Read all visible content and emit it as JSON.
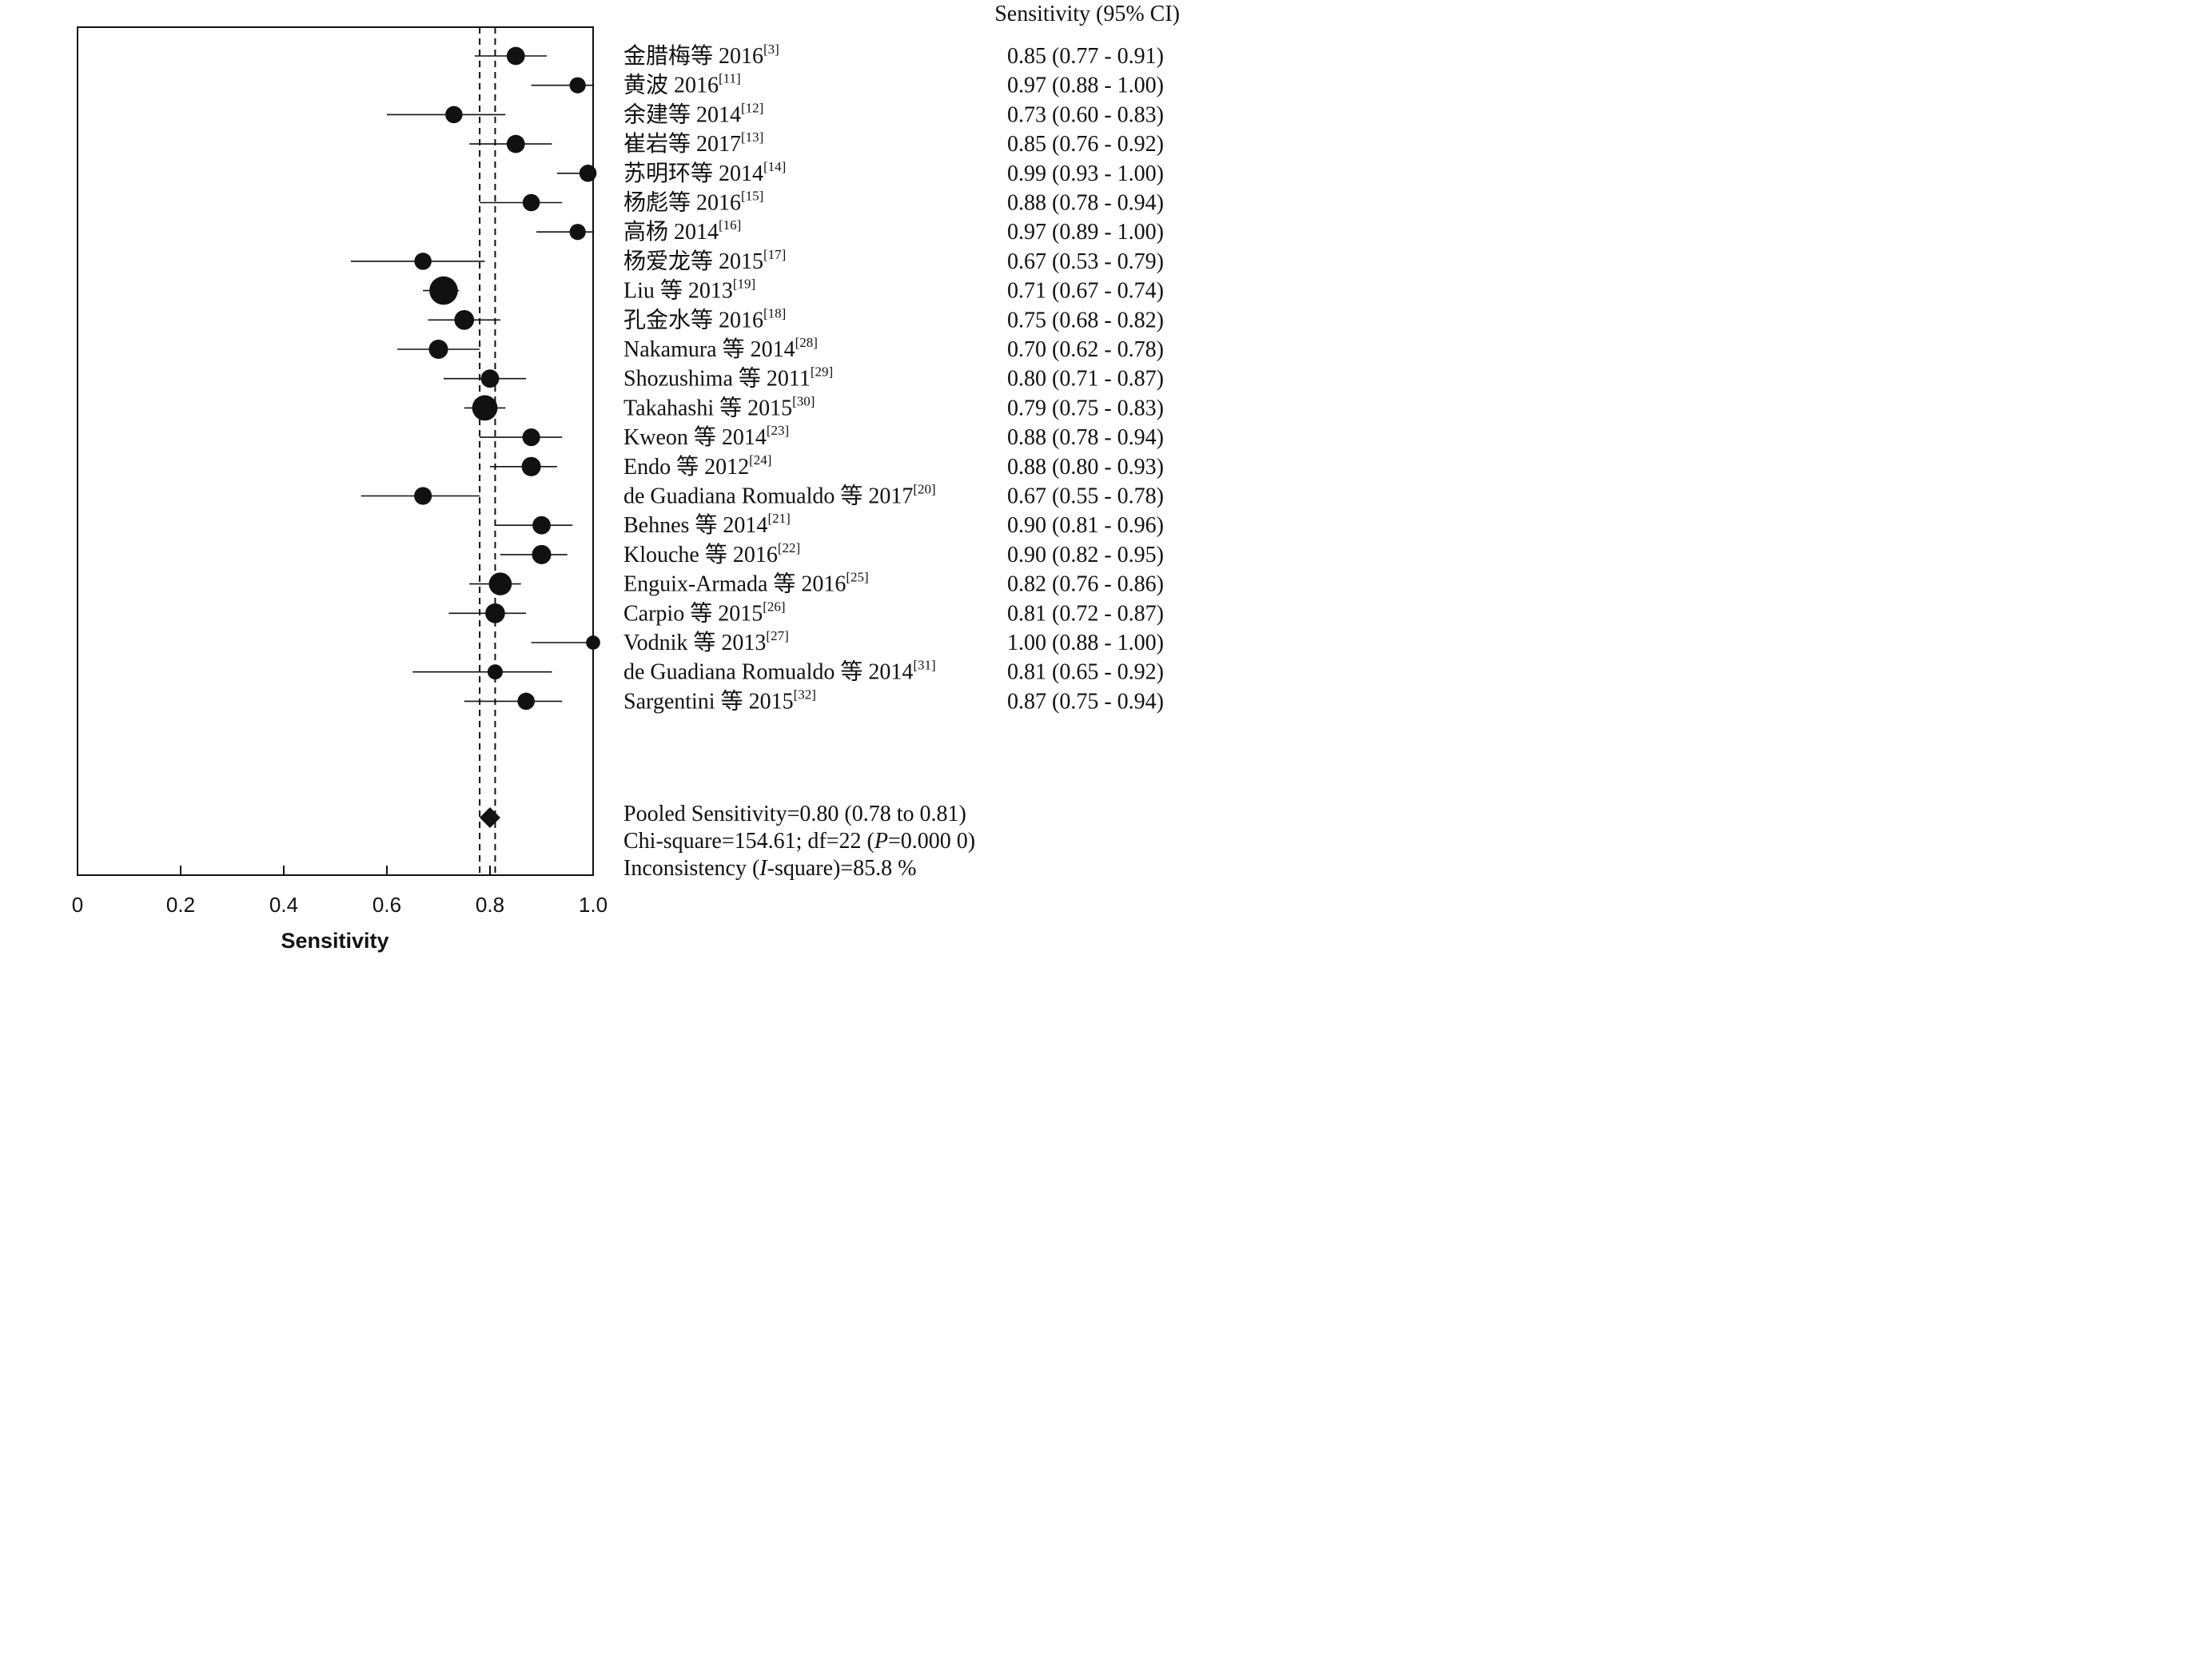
{
  "chart_data": {
    "type": "forest",
    "xlabel": "Sensitivity",
    "xlim": [
      0,
      1.0
    ],
    "xticks": [
      "0",
      "0.2",
      "0.4",
      "0.6",
      "0.8",
      "1.0"
    ],
    "ci_column_header": "Sensitivity (95% CI)",
    "pooled": {
      "estimate": 0.8,
      "lower": 0.78,
      "upper": 0.81
    },
    "studies": [
      {
        "label": "金腊梅等 2016",
        "ref": "[3]",
        "sens": 0.85,
        "lower": 0.77,
        "upper": 0.91,
        "ci_text": "0.85 (0.77 - 0.91)",
        "weight": 2
      },
      {
        "label": "黄波 2016",
        "ref": "[11]",
        "sens": 0.97,
        "lower": 0.88,
        "upper": 1.0,
        "ci_text": "0.97 (0.88 - 1.00)",
        "weight": 1.6
      },
      {
        "label": "余建等 2014",
        "ref": "[12]",
        "sens": 0.73,
        "lower": 0.6,
        "upper": 0.83,
        "ci_text": "0.73 (0.60 - 0.83)",
        "weight": 1.8
      },
      {
        "label": "崔岩等 2017",
        "ref": "[13]",
        "sens": 0.85,
        "lower": 0.76,
        "upper": 0.92,
        "ci_text": "0.85 (0.76 - 0.92)",
        "weight": 2
      },
      {
        "label": "苏明环等 2014",
        "ref": "[14]",
        "sens": 0.99,
        "lower": 0.93,
        "upper": 1.0,
        "ci_text": "0.99 (0.93 - 1.00)",
        "weight": 1.8
      },
      {
        "label": "杨彪等 2016",
        "ref": "[15]",
        "sens": 0.88,
        "lower": 0.78,
        "upper": 0.94,
        "ci_text": "0.88 (0.78 - 0.94)",
        "weight": 1.8
      },
      {
        "label": "高杨 2014",
        "ref": "[16]",
        "sens": 0.97,
        "lower": 0.89,
        "upper": 1.0,
        "ci_text": "0.97 (0.89 - 1.00)",
        "weight": 1.6
      },
      {
        "label": "杨爱龙等 2015",
        "ref": "[17]",
        "sens": 0.67,
        "lower": 0.53,
        "upper": 0.79,
        "ci_text": "0.67 (0.53 - 0.79)",
        "weight": 1.8
      },
      {
        "label": "Liu 等 2013",
        "ref": "[19]",
        "sens": 0.71,
        "lower": 0.67,
        "upper": 0.74,
        "ci_text": "0.71 (0.67 - 0.74)",
        "weight": 4
      },
      {
        "label": "孔金水等 2016",
        "ref": "[18]",
        "sens": 0.75,
        "lower": 0.68,
        "upper": 0.82,
        "ci_text": "0.75 (0.68 - 0.82)",
        "weight": 2.3
      },
      {
        "label": "Nakamura 等 2014",
        "ref": "[28]",
        "sens": 0.7,
        "lower": 0.62,
        "upper": 0.78,
        "ci_text": "0.70 (0.62 - 0.78)",
        "weight": 2.2
      },
      {
        "label": "Shozushima 等 2011",
        "ref": "[29]",
        "sens": 0.8,
        "lower": 0.71,
        "upper": 0.87,
        "ci_text": "0.80 (0.71 - 0.87)",
        "weight": 2
      },
      {
        "label": "Takahashi 等 2015",
        "ref": "[30]",
        "sens": 0.79,
        "lower": 0.75,
        "upper": 0.83,
        "ci_text": "0.79 (0.75 - 0.83)",
        "weight": 3.4
      },
      {
        "label": "Kweon 等 2014",
        "ref": "[23]",
        "sens": 0.88,
        "lower": 0.78,
        "upper": 0.94,
        "ci_text": "0.88 (0.78 - 0.94)",
        "weight": 1.9
      },
      {
        "label": "Endo 等 2012",
        "ref": "[24]",
        "sens": 0.88,
        "lower": 0.8,
        "upper": 0.93,
        "ci_text": "0.88 (0.80 - 0.93)",
        "weight": 2.2
      },
      {
        "label": "de Guadiana Romualdo 等 2017",
        "ref": "[20]",
        "sens": 0.67,
        "lower": 0.55,
        "upper": 0.78,
        "ci_text": "0.67 (0.55 - 0.78)",
        "weight": 1.9
      },
      {
        "label": "Behnes 等 2014",
        "ref": "[21]",
        "sens": 0.9,
        "lower": 0.81,
        "upper": 0.96,
        "ci_text": "0.90 (0.81 - 0.96)",
        "weight": 2
      },
      {
        "label": "Klouche 等 2016",
        "ref": "[22]",
        "sens": 0.9,
        "lower": 0.82,
        "upper": 0.95,
        "ci_text": "0.90 (0.82 - 0.95)",
        "weight": 2.2
      },
      {
        "label": "Enguix-Armada 等 2016",
        "ref": "[25]",
        "sens": 0.82,
        "lower": 0.76,
        "upper": 0.86,
        "ci_text": "0.82 (0.76 - 0.86)",
        "weight": 2.9
      },
      {
        "label": "Carpio 等 2015",
        "ref": "[26]",
        "sens": 0.81,
        "lower": 0.72,
        "upper": 0.87,
        "ci_text": "0.81 (0.72 - 0.87)",
        "weight": 2.3
      },
      {
        "label": "Vodnik 等 2013",
        "ref": "[27]",
        "sens": 1.0,
        "lower": 0.88,
        "upper": 1.0,
        "ci_text": "1.00 (0.88 - 1.00)",
        "weight": 1.2
      },
      {
        "label": "de Guadiana Romualdo 等 2014",
        "ref": "[31]",
        "sens": 0.81,
        "lower": 0.65,
        "upper": 0.92,
        "ci_text": "0.81 (0.65 - 0.92)",
        "weight": 1.4
      },
      {
        "label": "Sargentini 等 2015",
        "ref": "[32]",
        "sens": 0.87,
        "lower": 0.75,
        "upper": 0.94,
        "ci_text": "0.87 (0.75 - 0.94)",
        "weight": 1.8
      }
    ],
    "annotations": {
      "pooled_line": "Pooled Sensitivity=0.80 (0.78 to 0.81)",
      "chi_prefix": "Chi-square=154.61; df=22 (",
      "chi_p": "P",
      "chi_suffix": "=0.000 0)",
      "incon_prefix": "Inconsistency (",
      "incon_i": "I",
      "incon_suffix": "-square)=85.8 %"
    }
  }
}
